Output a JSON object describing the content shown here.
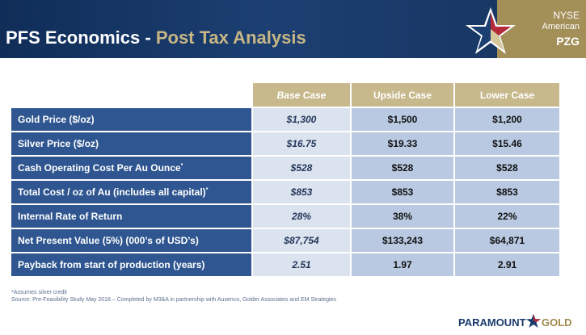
{
  "header": {
    "title_main": "PFS Economics - ",
    "title_accent": "Post Tax Analysis",
    "badge_line1": "NYSE",
    "badge_line2": "American",
    "badge_line3": "PZG"
  },
  "table": {
    "columns": [
      "Base Case",
      "Upside Case",
      "Lower Case"
    ],
    "rows": [
      {
        "label": "Gold Price ($/oz)",
        "sup": "",
        "values": [
          "$1,300",
          "$1,500",
          "$1,200"
        ]
      },
      {
        "label": "Silver Price ($/oz)",
        "sup": "",
        "values": [
          "$16.75",
          "$19.33",
          "$15.46"
        ]
      },
      {
        "label": "Cash Operating Cost Per Au Ounce",
        "sup": "*",
        "values": [
          "$528",
          "$528",
          "$528"
        ]
      },
      {
        "label": "Total Cost / oz of Au (includes all capital)",
        "sup": "*",
        "values": [
          "$853",
          "$853",
          "$853"
        ]
      },
      {
        "label": "Internal Rate of Return",
        "sup": "",
        "values": [
          "28%",
          "38%",
          "22%"
        ]
      },
      {
        "label": "Net Present Value (5%) (000’s of USD’s)",
        "sup": "",
        "values": [
          "$87,754",
          "$133,243",
          "$64,871"
        ]
      },
      {
        "label": "Payback from start of production (years)",
        "sup": "",
        "values": [
          "2.51",
          "1.97",
          "2.91"
        ]
      }
    ]
  },
  "footnotes": {
    "note1": "*Assumes silver credit",
    "note2": "Source: Pre-Feasibility Study May 2018 – Completed by M3&A in partnership with Ausenco, Golder Associates and EM Strategies"
  },
  "brand": {
    "part1": "PARAMOUNT",
    "part2": "GOLD"
  },
  "colors": {
    "navy": "#1c3f72",
    "gold": "#a38f58",
    "label_blue": "#2f5690",
    "base_cell": "#dbe3ef",
    "value_cell": "#b9c9e2",
    "header_cell": "#c7b98c"
  }
}
